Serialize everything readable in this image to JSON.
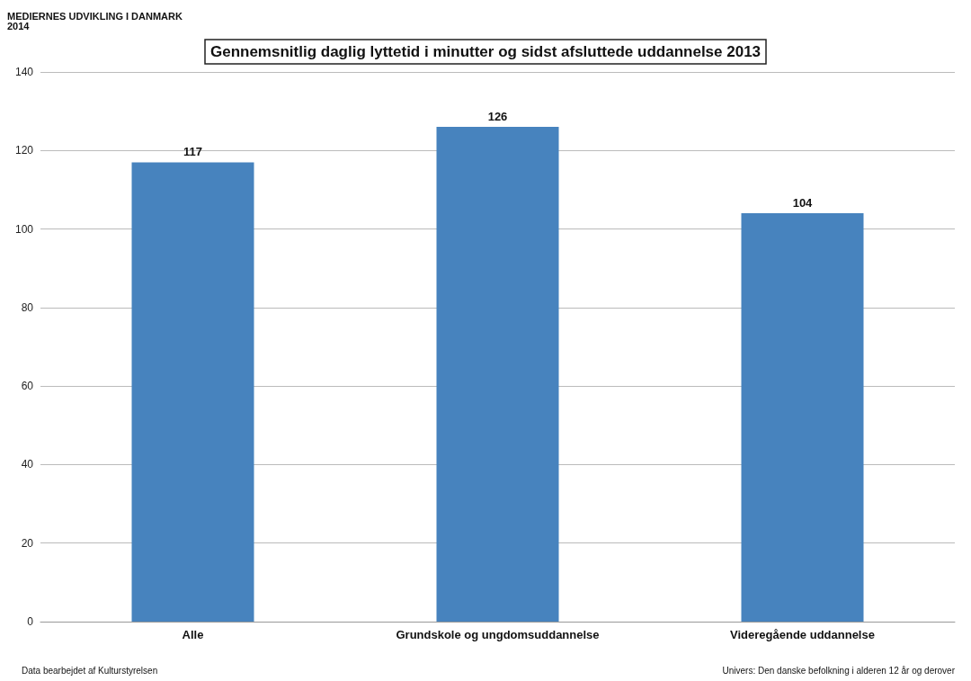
{
  "chart_data": {
    "type": "bar",
    "title": "Gennemsnitlig daglig lyttetid i minutter og sidst afsluttede uddannelse 2013",
    "categories": [
      "Alle",
      "Grundskole og ungdomsuddannelse",
      "Videregående uddannelse"
    ],
    "values": [
      117,
      126,
      104
    ],
    "color": "#4783be",
    "ylim": [
      0,
      140
    ],
    "yticks": [
      0,
      20,
      40,
      60,
      80,
      100,
      120,
      140
    ],
    "grid": "y",
    "data_labels": true,
    "annotations": [
      "MEDIERNES UDVIKLING I DANMARK 2014",
      "Data bearbejdet af Kulturstyrelsen",
      "Univers: Den danske befolkning i alderen 12 år og derover"
    ]
  }
}
